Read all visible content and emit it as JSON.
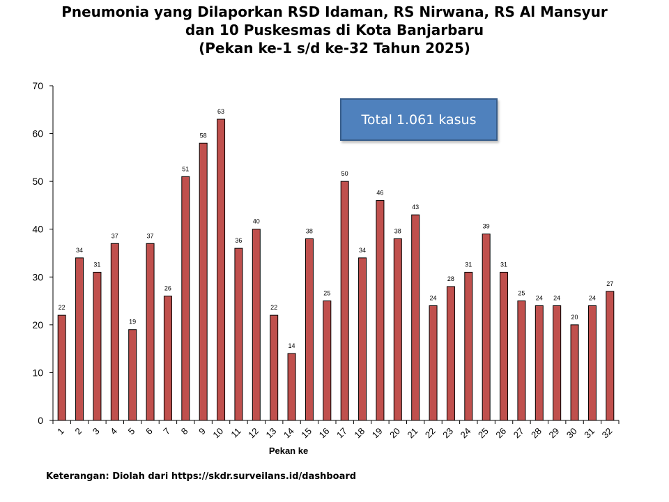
{
  "chart_data": {
    "type": "bar",
    "title": [
      "Pneumonia yang Dilaporkan RSD Idaman, RS Nirwana, RS Al Mansyur",
      "dan 10 Puskesmas di Kota Banjarbaru",
      "(Pekan ke-1 s/d ke-32 Tahun 2025)"
    ],
    "xlabel": "Pekan ke",
    "ylabel": "",
    "ylim": [
      0,
      70
    ],
    "yticks": [
      0,
      10,
      20,
      30,
      40,
      50,
      60,
      70
    ],
    "categories": [
      "1",
      "2",
      "3",
      "4",
      "5",
      "6",
      "7",
      "8",
      "9",
      "10",
      "11",
      "12",
      "13",
      "14",
      "15",
      "16",
      "17",
      "18",
      "19",
      "20",
      "21",
      "22",
      "23",
      "24",
      "25",
      "26",
      "27",
      "28",
      "29",
      "30",
      "31",
      "32"
    ],
    "values": [
      22,
      34,
      31,
      37,
      19,
      37,
      26,
      51,
      58,
      63,
      36,
      40,
      22,
      14,
      38,
      25,
      50,
      34,
      46,
      38,
      43,
      24,
      28,
      31,
      39,
      31,
      25,
      24,
      24,
      20,
      24,
      27
    ],
    "bar_color": "#c0504d",
    "grid": false,
    "data_labels": true,
    "annotation": "Total 1.061 kasus",
    "annotation_color": "#4f81bd"
  },
  "footnote": "Keterangan: Diolah dari https://skdr.surveilans.id/dashboard"
}
